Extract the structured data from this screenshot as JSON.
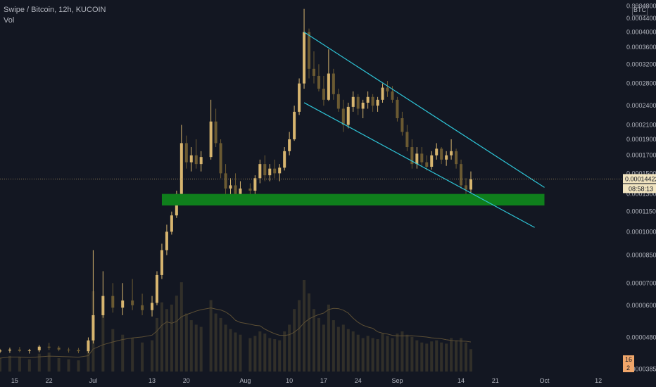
{
  "header": {
    "title": "Swipe / Bitcoin, 12h, KUCOIN",
    "volume_label": "Vol",
    "currency_badge": "BTC"
  },
  "colors": {
    "background": "#131722",
    "candle_up": "#d7b56f",
    "candle_down": "#6b5a32",
    "volume_bar": "#3e3a2c",
    "volume_ma": "#5c4f35",
    "trendline": "#2ec4d6",
    "support_zone": "#0f7f1c",
    "price_line": "#8a7a52",
    "price_tag": "#f0e3bf",
    "countdown_tag": "#f0e3bf",
    "volume_tag": "#f0a66a",
    "axis_text": "#b2b5be"
  },
  "chart_data": {
    "type": "candlestick",
    "title": "Swipe / Bitcoin, 12h, KUCOIN",
    "x_ticks": [
      "15",
      "22",
      "Jul",
      "13",
      "20",
      "Aug",
      "10",
      "17",
      "24",
      "Sep",
      "14",
      "21",
      "Oct",
      "12"
    ],
    "y_ticks": [
      "0.00048000",
      "0.00044000",
      "0.00040000",
      "0.00036000",
      "0.00032000",
      "0.00028000",
      "0.00024000",
      "0.00021000",
      "0.00019000",
      "0.00017000",
      "0.00015000",
      "0.00013000",
      "0.00011500",
      "0.00010000",
      "0.00008500",
      "0.00007000",
      "0.00006000",
      "0.00004800",
      "0.00003850"
    ],
    "y_scale": "log",
    "ylim": [
      3.75e-05,
      0.0005
    ],
    "date_range": [
      "2020-06-12",
      "2020-10-17"
    ],
    "current_price": "0.00014422",
    "countdown": "08:58:13",
    "volume_tags": [
      "16",
      "2"
    ],
    "candles": [
      [
        "2020-06-12",
        4.35e-05,
        4.43e-05,
        4.3e-05,
        4.39e-05,
        120
      ],
      [
        "2020-06-14",
        4.38e-05,
        4.47e-05,
        4.31e-05,
        4.41e-05,
        140
      ],
      [
        "2020-06-16",
        4.41e-05,
        4.49e-05,
        4.33e-05,
        4.37e-05,
        130
      ],
      [
        "2020-06-18",
        4.37e-05,
        4.43e-05,
        4.29e-05,
        4.39e-05,
        110
      ],
      [
        "2020-06-20",
        4.39e-05,
        4.55e-05,
        4.33e-05,
        4.5e-05,
        160
      ],
      [
        "2020-06-22",
        4.5e-05,
        4.62e-05,
        4.4e-05,
        4.47e-05,
        170
      ],
      [
        "2020-06-24",
        4.47e-05,
        4.52e-05,
        4.36e-05,
        4.41e-05,
        120
      ],
      [
        "2020-06-26",
        4.41e-05,
        4.47e-05,
        4.32e-05,
        4.4e-05,
        110
      ],
      [
        "2020-06-28",
        4.4e-05,
        4.46e-05,
        4.3e-05,
        4.36e-05,
        100
      ],
      [
        "2020-06-30",
        4.36e-05,
        4.8e-05,
        4.3e-05,
        4.7e-05,
        260
      ],
      [
        "2020-07-01",
        4.7e-05,
        8.8e-05,
        4.6e-05,
        5.6e-05,
        720
      ],
      [
        "2020-07-03",
        5.6e-05,
        7.6e-05,
        5.5e-05,
        6.4e-05,
        520
      ],
      [
        "2020-07-05",
        6.4e-05,
        7e-05,
        5.7e-05,
        5.9e-05,
        380
      ],
      [
        "2020-07-07",
        5.9e-05,
        7e-05,
        5.6e-05,
        6.2e-05,
        330
      ],
      [
        "2020-07-09",
        6.2e-05,
        7.2e-05,
        5.8e-05,
        6e-05,
        300
      ],
      [
        "2020-07-11",
        6e-05,
        6.5e-05,
        5.6e-05,
        5.8e-05,
        260
      ],
      [
        "2020-07-13",
        5.8e-05,
        6.4e-05,
        5.55e-05,
        6.1e-05,
        280
      ],
      [
        "2020-07-14",
        6.1e-05,
        7.6e-05,
        6e-05,
        7.4e-05,
        480
      ],
      [
        "2020-07-15",
        7.4e-05,
        9.2e-05,
        7.2e-05,
        8.8e-05,
        620
      ],
      [
        "2020-07-16",
        8.8e-05,
        0.000105,
        8.5e-05,
        0.0001,
        560
      ],
      [
        "2020-07-17",
        0.0001,
        0.000115,
        9.8e-05,
        0.000112,
        600
      ],
      [
        "2020-07-18",
        0.000112,
        0.000133,
        0.00011,
        0.00013,
        680
      ],
      [
        "2020-07-19",
        0.00013,
        0.00021,
        0.000125,
        0.000185,
        800
      ],
      [
        "2020-07-20",
        0.000185,
        0.000195,
        0.000155,
        0.000162,
        520
      ],
      [
        "2020-07-21",
        0.000162,
        0.00018,
        0.000152,
        0.00017,
        460
      ],
      [
        "2020-07-22",
        0.00017,
        0.00019,
        0.000155,
        0.00016,
        420
      ],
      [
        "2020-07-23",
        0.00016,
        0.000175,
        0.000152,
        0.000168,
        400
      ],
      [
        "2020-07-25",
        0.000168,
        0.00025,
        0.000165,
        0.000215,
        640
      ],
      [
        "2020-07-26",
        0.000215,
        0.000235,
        0.00018,
        0.000185,
        520
      ],
      [
        "2020-07-27",
        0.000185,
        0.00019,
        0.000145,
        0.00015,
        480
      ],
      [
        "2020-07-28",
        0.00015,
        0.00016,
        0.00013,
        0.000135,
        420
      ],
      [
        "2020-07-29",
        0.000135,
        0.000145,
        0.000125,
        0.000138,
        380
      ],
      [
        "2020-07-30",
        0.000138,
        0.00015,
        0.000127,
        0.00013,
        350
      ],
      [
        "2020-07-31",
        0.00013,
        0.000142,
        0.000126,
        0.000135,
        330
      ],
      [
        "2020-08-02",
        0.000135,
        0.00014,
        0.000126,
        0.000133,
        300
      ],
      [
        "2020-08-03",
        0.000133,
        0.000148,
        0.00013,
        0.000145,
        320
      ],
      [
        "2020-08-04",
        0.000145,
        0.000165,
        0.00014,
        0.00016,
        360
      ],
      [
        "2020-08-05",
        0.00016,
        0.00017,
        0.000142,
        0.000148,
        340
      ],
      [
        "2020-08-06",
        0.000148,
        0.00016,
        0.000142,
        0.000155,
        300
      ],
      [
        "2020-08-07",
        0.000155,
        0.000165,
        0.000145,
        0.00015,
        290
      ],
      [
        "2020-08-08",
        0.00015,
        0.00016,
        0.000142,
        0.000156,
        280
      ],
      [
        "2020-08-09",
        0.000156,
        0.00018,
        0.000153,
        0.000175,
        360
      ],
      [
        "2020-08-10",
        0.000175,
        0.0002,
        0.00017,
        0.00019,
        420
      ],
      [
        "2020-08-11",
        0.00019,
        0.00024,
        0.000188,
        0.00023,
        560
      ],
      [
        "2020-08-12",
        0.00023,
        0.00029,
        0.000225,
        0.00028,
        640
      ],
      [
        "2020-08-13",
        0.00028,
        0.00047,
        0.00027,
        0.0004,
        820
      ],
      [
        "2020-08-14",
        0.0004,
        0.00041,
        0.00029,
        0.00031,
        700
      ],
      [
        "2020-08-15",
        0.00031,
        0.00035,
        0.00028,
        0.000295,
        560
      ],
      [
        "2020-08-16",
        0.000295,
        0.00032,
        0.000265,
        0.00027,
        480
      ],
      [
        "2020-08-17",
        0.00027,
        0.000295,
        0.00024,
        0.00025,
        420
      ],
      [
        "2020-08-18",
        0.00025,
        0.000355,
        0.000248,
        0.0003,
        600
      ],
      [
        "2020-08-19",
        0.0003,
        0.00031,
        0.00025,
        0.00026,
        460
      ],
      [
        "2020-08-20",
        0.00026,
        0.00027,
        0.00023,
        0.000235,
        400
      ],
      [
        "2020-08-21",
        0.000235,
        0.00025,
        0.0002,
        0.00021,
        420
      ],
      [
        "2020-08-22",
        0.00021,
        0.000245,
        0.000205,
        0.000238,
        380
      ],
      [
        "2020-08-23",
        0.000238,
        0.000265,
        0.00023,
        0.000255,
        360
      ],
      [
        "2020-08-24",
        0.000255,
        0.00026,
        0.000225,
        0.000235,
        330
      ],
      [
        "2020-08-25",
        0.000235,
        0.00025,
        0.00022,
        0.000245,
        300
      ],
      [
        "2020-08-26",
        0.000245,
        0.000265,
        0.000235,
        0.000255,
        320
      ],
      [
        "2020-08-27",
        0.000255,
        0.00026,
        0.00023,
        0.00024,
        300
      ],
      [
        "2020-08-28",
        0.00024,
        0.000255,
        0.00023,
        0.00025,
        290
      ],
      [
        "2020-08-29",
        0.00025,
        0.00028,
        0.000245,
        0.000272,
        340
      ],
      [
        "2020-08-30",
        0.000272,
        0.000285,
        0.000255,
        0.000265,
        320
      ],
      [
        "2020-08-31",
        0.000265,
        0.000275,
        0.000245,
        0.00025,
        300
      ],
      [
        "2020-09-01",
        0.00025,
        0.000255,
        0.000215,
        0.00022,
        340
      ],
      [
        "2020-09-02",
        0.00022,
        0.00023,
        0.000195,
        0.0002,
        360
      ],
      [
        "2020-09-03",
        0.0002,
        0.00021,
        0.000175,
        0.00018,
        330
      ],
      [
        "2020-09-04",
        0.00018,
        0.00019,
        0.000155,
        0.00016,
        310
      ],
      [
        "2020-09-05",
        0.00016,
        0.00018,
        0.000155,
        0.000172,
        280
      ],
      [
        "2020-09-06",
        0.000172,
        0.00018,
        0.000158,
        0.000162,
        260
      ],
      [
        "2020-09-07",
        0.000162,
        0.00017,
        0.000153,
        0.000157,
        250
      ],
      [
        "2020-09-08",
        0.000157,
        0.000175,
        0.000154,
        0.00017,
        270
      ],
      [
        "2020-09-09",
        0.00017,
        0.000185,
        0.000165,
        0.000178,
        280
      ],
      [
        "2020-09-10",
        0.000178,
        0.00018,
        0.00016,
        0.000165,
        260
      ],
      [
        "2020-09-11",
        0.000165,
        0.000175,
        0.000158,
        0.00017,
        250
      ],
      [
        "2020-09-12",
        0.00017,
        0.00019,
        0.000165,
        0.000175,
        300
      ],
      [
        "2020-09-13",
        0.000175,
        0.000178,
        0.000155,
        0.00016,
        280
      ],
      [
        "2020-09-14",
        0.00016,
        0.000165,
        0.000135,
        0.000138,
        300
      ],
      [
        "2020-09-15",
        0.000138,
        0.000145,
        0.00013,
        0.000134,
        260
      ],
      [
        "2020-09-16",
        0.000134,
        0.000152,
        0.000131,
        0.000144,
        200
      ]
    ],
    "annotations": {
      "upper_trendline": [
        [
          "2020-08-13",
          0.0004
        ],
        [
          "2020-10-01",
          0.000136
        ]
      ],
      "lower_trendline": [
        [
          "2020-08-13",
          0.000245
        ],
        [
          "2020-09-29",
          0.000103
        ]
      ],
      "support_zone": {
        "from": "2020-07-15",
        "to": "2020-10-01",
        "low": 0.00012,
        "high": 0.00013
      }
    }
  }
}
